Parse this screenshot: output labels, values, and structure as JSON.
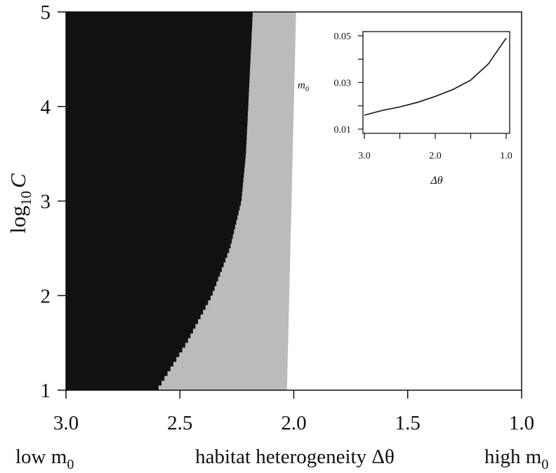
{
  "chart_data": [
    {
      "type": "heatmap",
      "xlabel": "habitat heterogeneity Δθ",
      "xlabel_left": "low m",
      "xlabel_left_sub": "0",
      "xlabel_right": "high m",
      "xlabel_right_sub": "0",
      "ylabel_prefix": "log",
      "ylabel_sub": "10",
      "ylabel_var": "C",
      "xlim": [
        3.0,
        1.0
      ],
      "ylim": [
        1,
        5
      ],
      "xticks": [
        "3.0",
        "2.5",
        "2.0",
        "1.5",
        "1.0"
      ],
      "yticks": [
        "1",
        "2",
        "3",
        "4",
        "5"
      ],
      "regions": [
        {
          "color": "#111111",
          "boundary": [
            {
              "y": 1.0,
              "x": 2.6
            },
            {
              "y": 1.5,
              "x": 2.47
            },
            {
              "y": 2.0,
              "x": 2.36
            },
            {
              "y": 2.5,
              "x": 2.28
            },
            {
              "y": 3.0,
              "x": 2.23
            },
            {
              "y": 3.5,
              "x": 2.21
            },
            {
              "y": 4.0,
              "x": 2.2
            },
            {
              "y": 4.5,
              "x": 2.19
            },
            {
              "y": 5.0,
              "x": 2.18
            }
          ]
        },
        {
          "color": "#bbbbbb",
          "boundary": [
            {
              "y": 1.0,
              "x": 2.03
            },
            {
              "y": 2.0,
              "x": 2.02
            },
            {
              "y": 3.0,
              "x": 2.01
            },
            {
              "y": 4.0,
              "x": 2.0
            },
            {
              "y": 5.0,
              "x": 1.99
            }
          ]
        }
      ]
    },
    {
      "type": "line",
      "xlabel": "Δθ",
      "ylabel": "m",
      "ylabel_sub": "0",
      "xlim": [
        3.0,
        1.0
      ],
      "ylim": [
        0.01,
        0.05
      ],
      "xticks": [
        "3.0",
        "2.0",
        "1.0"
      ],
      "yticks": [
        "0.01",
        "0.03",
        "0.05"
      ],
      "x": [
        3.0,
        2.75,
        2.5,
        2.25,
        2.0,
        1.75,
        1.5,
        1.25,
        1.0
      ],
      "y": [
        0.016,
        0.018,
        0.0195,
        0.0215,
        0.024,
        0.027,
        0.031,
        0.038,
        0.049
      ]
    }
  ]
}
